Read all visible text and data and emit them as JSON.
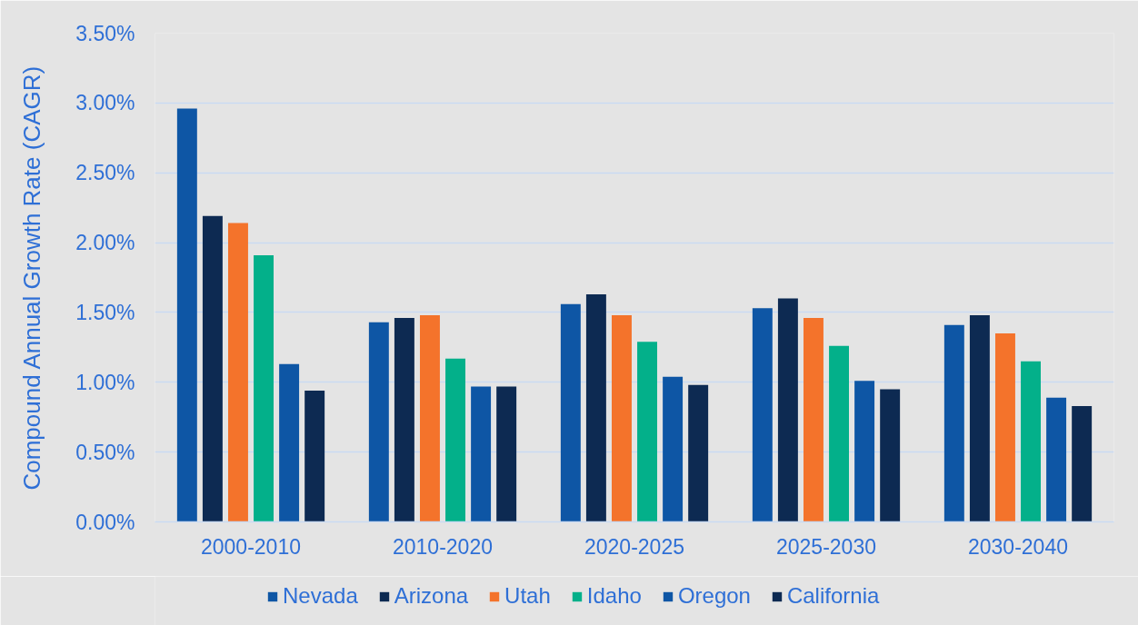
{
  "chart_data": {
    "type": "bar",
    "ylabel": "Compound Annual Growth Rate (CAGR)",
    "categories": [
      "2000-2010",
      "2010-2020",
      "2020-2025",
      "2025-2030",
      "2030-2040"
    ],
    "series": [
      {
        "name": "Nevada",
        "color": "#0e56a5",
        "values": [
          2.96,
          1.43,
          1.56,
          1.53,
          1.41
        ]
      },
      {
        "name": "Arizona",
        "color": "#0d2a52",
        "values": [
          2.19,
          1.46,
          1.63,
          1.6,
          1.48
        ]
      },
      {
        "name": "Utah",
        "color": "#f4732b",
        "values": [
          2.14,
          1.48,
          1.48,
          1.46,
          1.35
        ]
      },
      {
        "name": "Idaho",
        "color": "#03b08a",
        "values": [
          1.91,
          1.17,
          1.29,
          1.26,
          1.15
        ]
      },
      {
        "name": "Oregon",
        "color": "#0e56a5",
        "values": [
          1.13,
          0.97,
          1.04,
          1.01,
          0.89
        ]
      },
      {
        "name": "California",
        "color": "#0d2a52",
        "values": [
          0.94,
          0.97,
          0.98,
          0.95,
          0.83
        ]
      }
    ],
    "ylim": [
      0,
      3.5
    ],
    "yticks": [
      {
        "value": 0,
        "label": "0.00%"
      },
      {
        "value": 0.5,
        "label": "0.50%"
      },
      {
        "value": 1,
        "label": "1.00%"
      },
      {
        "value": 1.5,
        "label": "1.50%"
      },
      {
        "value": 2,
        "label": "2.00%"
      },
      {
        "value": 2.5,
        "label": "2.50%"
      },
      {
        "value": 3,
        "label": "3.00%"
      },
      {
        "value": 3.5,
        "label": "3.50%"
      }
    ],
    "grid": "y",
    "legend": "bottom"
  }
}
